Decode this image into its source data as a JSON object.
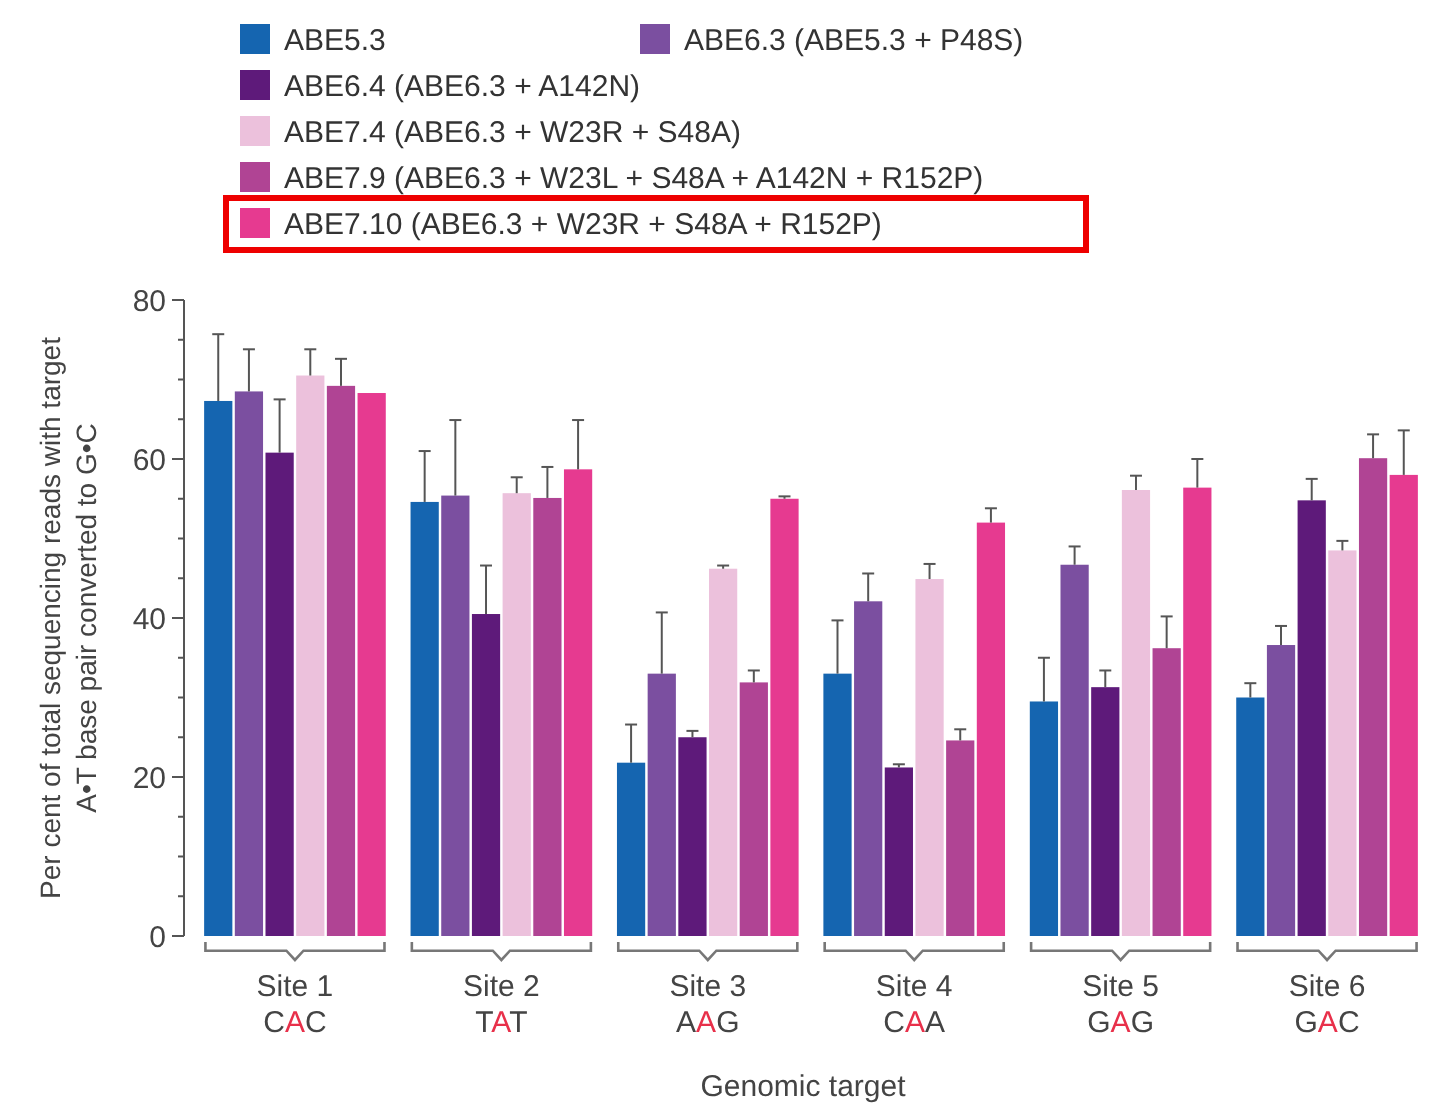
{
  "chart_data": {
    "type": "bar",
    "xlabel": "Genomic target",
    "ylabel": "Per cent of total sequencing reads with target\nA•T base pair converted to G•C",
    "categories": [
      "Site 1\nCAC",
      "Site 2\nTAT",
      "Site 3\nAAG",
      "Site 4\nCAA",
      "Site 5\nGAG",
      "Site 6\nGAC"
    ],
    "ylim": [
      0,
      80
    ],
    "yticks": [
      0,
      {
        "value": 5,
        "label": null
      },
      {
        "value": 10,
        "label": null
      },
      {
        "value": 15,
        "label": null
      },
      20,
      {
        "value": 25,
        "label": null
      },
      {
        "value": 30,
        "label": null
      },
      {
        "value": 35,
        "label": null
      },
      40,
      {
        "value": 45,
        "label": null
      },
      {
        "value": 50,
        "label": null
      },
      {
        "value": 55,
        "label": null
      },
      60,
      {
        "value": 65,
        "label": null
      },
      {
        "value": 70,
        "label": null
      },
      {
        "value": 75,
        "label": null
      },
      80
    ],
    "legend": "top",
    "grid": false,
    "series": [
      {
        "name": "ABE5.3",
        "color": "#1565b0",
        "values": [
          67.3,
          54.6,
          21.8,
          33,
          29.5,
          30
        ],
        "errors": [
          [
            67.3,
            75.7
          ],
          [
            54.6,
            61
          ],
          [
            21.8,
            26.6
          ],
          [
            33,
            39.7
          ],
          [
            29.5,
            35
          ],
          [
            30,
            31.8
          ]
        ]
      },
      {
        "name": "ABE6.3 (ABE5.3 + P48S)",
        "color": "#7b4fa0",
        "values": [
          68.5,
          55.4,
          33,
          42.1,
          46.7,
          36.6
        ],
        "errors": [
          [
            68.5,
            73.8
          ],
          [
            55.4,
            64.9
          ],
          [
            33,
            40.7
          ],
          [
            42.1,
            45.6
          ],
          [
            46.7,
            49
          ],
          [
            36.6,
            39
          ]
        ]
      },
      {
        "name": "ABE6.4 (ABE6.3 + A142N)",
        "color": "#5e1a7a",
        "values": [
          60.8,
          40.5,
          25,
          21.2,
          31.3,
          54.8
        ],
        "errors": [
          [
            60.8,
            67.5
          ],
          [
            40.5,
            46.6
          ],
          [
            25,
            25.8
          ],
          [
            21.2,
            21.6
          ],
          [
            31.3,
            33.4
          ],
          [
            54.8,
            57.5
          ]
        ]
      },
      {
        "name": "ABE7.4 (ABE6.3 + W23R + S48A)",
        "color": "#ecc1dc",
        "values": [
          70.5,
          55.7,
          46.2,
          44.9,
          56.1,
          48.5
        ],
        "errors": [
          [
            70.5,
            73.8
          ],
          [
            55.7,
            57.7
          ],
          [
            46.2,
            46.6
          ],
          [
            44.9,
            46.8
          ],
          [
            56.1,
            57.9
          ],
          [
            48.5,
            49.7
          ]
        ]
      },
      {
        "name": "ABE7.9 (ABE6.3 + W23L + S48A + A142N + R152P)",
        "color": "#b04494",
        "values": [
          69.2,
          55.1,
          31.9,
          24.6,
          36.2,
          60.1
        ],
        "errors": [
          [
            69.2,
            72.6
          ],
          [
            55.1,
            59
          ],
          [
            31.9,
            33.4
          ],
          [
            24.6,
            26
          ],
          [
            36.2,
            40.2
          ],
          [
            60.1,
            63.1
          ]
        ]
      },
      {
        "name": "ABE7.10 (ABE6.3 + W23R + S48A + R152P)",
        "color": "#e63a90",
        "values": [
          68.3,
          58.7,
          55,
          52,
          56.4,
          58
        ],
        "errors": [
          null,
          [
            58.7,
            64.9
          ],
          [
            55,
            55.3
          ],
          [
            52,
            53.8
          ],
          [
            56.4,
            60
          ],
          [
            58,
            63.6
          ]
        ]
      }
    ]
  }
}
